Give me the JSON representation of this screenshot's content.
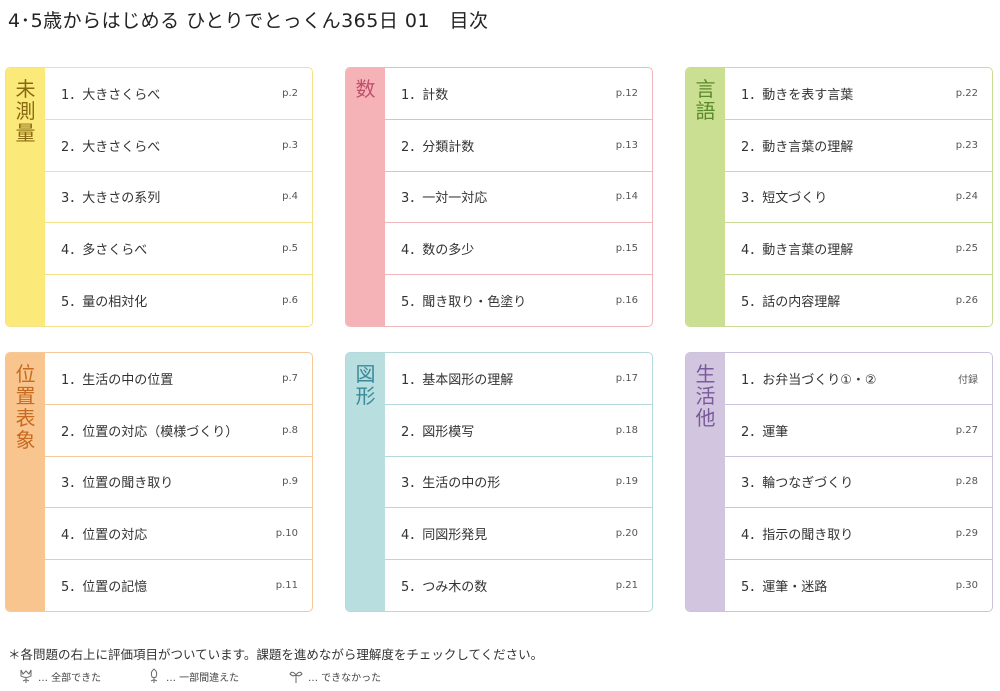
{
  "title": "4･5歳からはじめる ひとりでとっくん365日 01　目次",
  "sections": [
    {
      "label": "未測量",
      "color": "#fbe97a",
      "border": "#f3e28a",
      "text": "#8a6a10",
      "items": [
        {
          "label": "1．大きさくらべ",
          "page": "p.2"
        },
        {
          "label": "2．大きさくらべ",
          "page": "p.3"
        },
        {
          "label": "3．大きさの系列",
          "page": "p.4"
        },
        {
          "label": "4．多さくらべ",
          "page": "p.5"
        },
        {
          "label": "5．量の相対化",
          "page": "p.6"
        }
      ]
    },
    {
      "label": "数",
      "color": "#f5b3b8",
      "border": "#eeb8bc",
      "text": "#c0506a",
      "items": [
        {
          "label": "1．計数",
          "page": "p.12"
        },
        {
          "label": "2．分類計数",
          "page": "p.13"
        },
        {
          "label": "3．一対一対応",
          "page": "p.14"
        },
        {
          "label": "4．数の多少",
          "page": "p.15"
        },
        {
          "label": "5．聞き取り・色塗り",
          "page": "p.16"
        }
      ]
    },
    {
      "label": "言語",
      "color": "#cadf92",
      "border": "#c8dc98",
      "text": "#5a8a2a",
      "items": [
        {
          "label": "1．動きを表す言葉",
          "page": "p.22"
        },
        {
          "label": "2．動き言葉の理解",
          "page": "p.23"
        },
        {
          "label": "3．短文づくり",
          "page": "p.24"
        },
        {
          "label": "4．動き言葉の理解",
          "page": "p.25"
        },
        {
          "label": "5．話の内容理解",
          "page": "p.26"
        }
      ]
    },
    {
      "label": "位置表象",
      "color": "#f9c58e",
      "border": "#f5c898",
      "text": "#c86a20",
      "items": [
        {
          "label": "1．生活の中の位置",
          "page": "p.7"
        },
        {
          "label": "2．位置の対応（模様づくり）",
          "page": "p.8"
        },
        {
          "label": "3．位置の聞き取り",
          "page": "p.9"
        },
        {
          "label": "4．位置の対応",
          "page": "p.10"
        },
        {
          "label": "5．位置の記憶",
          "page": "p.11"
        }
      ]
    },
    {
      "label": "図形",
      "color": "#b8dedf",
      "border": "#b5d8da",
      "text": "#3a8a9a",
      "items": [
        {
          "label": "1．基本図形の理解",
          "page": "p.17"
        },
        {
          "label": "2．図形模写",
          "page": "p.18"
        },
        {
          "label": "3．生活の中の形",
          "page": "p.19"
        },
        {
          "label": "4．同図形発見",
          "page": "p.20"
        },
        {
          "label": "5．つみ木の数",
          "page": "p.21"
        }
      ]
    },
    {
      "label": "生活他",
      "color": "#d2c5e0",
      "border": "#cdc2dd",
      "text": "#7a5a9a",
      "items": [
        {
          "label": "1．お弁当づくり①・②",
          "page": "付録"
        },
        {
          "label": "2．運筆",
          "page": "p.27"
        },
        {
          "label": "3．輪つなぎづくり",
          "page": "p.28"
        },
        {
          "label": "4．指示の聞き取り",
          "page": "p.29"
        },
        {
          "label": "5．運筆・迷路",
          "page": "p.30"
        }
      ]
    }
  ],
  "note": "＊各問題の右上に評価項目がついています。課題を進めながら理解度をチェックしてください。",
  "legend": [
    {
      "icon": "tulip-open-icon",
      "label": "… 全部できた"
    },
    {
      "icon": "tulip-bud-icon",
      "label": "… 一部間違えた"
    },
    {
      "icon": "sprout-icon",
      "label": "… できなかった"
    }
  ]
}
